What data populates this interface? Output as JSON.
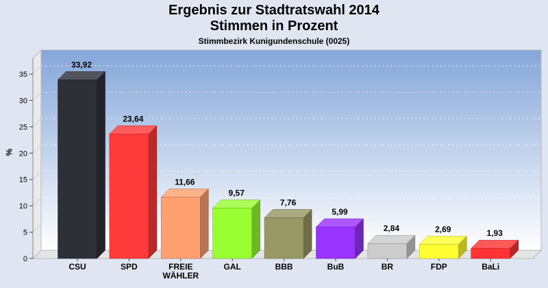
{
  "title_lines": [
    "Ergebnis zur Stadtratswahl 2014",
    "Stimmen in Prozent"
  ],
  "subtitle": "Stimmbezirk Kunigundenschule (0025)",
  "chart_data": {
    "type": "bar",
    "title": "Ergebnis zur Stadtratswahl 2014 Stimmen in Prozent",
    "subtitle": "Stimmbezirk Kunigundenschule (0025)",
    "xlabel": "",
    "ylabel": "%",
    "ylim": [
      0,
      38
    ],
    "yticks": [
      0,
      5,
      10,
      15,
      20,
      25,
      30,
      35
    ],
    "grid": true,
    "categories": [
      "CSU",
      "SPD",
      "FREIE WÄHLER",
      "GAL",
      "BBB",
      "BuB",
      "BR",
      "FDP",
      "BaLi"
    ],
    "category_lines": [
      [
        "CSU"
      ],
      [
        "SPD"
      ],
      [
        "FREIE",
        "WÄHLER"
      ],
      [
        "GAL"
      ],
      [
        "BBB"
      ],
      [
        "BuB"
      ],
      [
        "BR"
      ],
      [
        "FDP"
      ],
      [
        "BaLi"
      ]
    ],
    "values": [
      33.92,
      23.64,
      11.66,
      9.57,
      7.76,
      5.99,
      2.84,
      2.69,
      1.93
    ],
    "value_labels": [
      "33,92",
      "23,64",
      "11,66",
      "9,57",
      "7,76",
      "5,99",
      "2,84",
      "2,69",
      "1,93"
    ],
    "colors": [
      "#2e3038",
      "#ff3a3a",
      "#ffa070",
      "#99ff33",
      "#999966",
      "#9933ff",
      "#cccccc",
      "#ffff33",
      "#ff3333"
    ]
  }
}
